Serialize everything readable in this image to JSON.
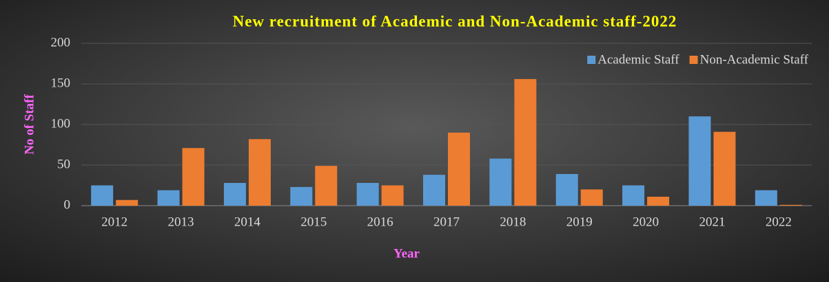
{
  "chart_data": {
    "type": "bar",
    "title": "New recruitment of Academic and Non-Academic staff-2022",
    "x_label": "Year",
    "y_label": "No of Staff",
    "categories": [
      "2012",
      "2013",
      "2014",
      "2015",
      "2016",
      "2017",
      "2018",
      "2019",
      "2020",
      "2021",
      "2022"
    ],
    "series": [
      {
        "name": "Academic Staff",
        "color": "#5b9bd5",
        "values": [
          25,
          19,
          28,
          23,
          28,
          38,
          58,
          39,
          25,
          110,
          19
        ]
      },
      {
        "name": "Non-Academic Staff",
        "color": "#ed7d31",
        "values": [
          7,
          71,
          82,
          49,
          25,
          90,
          156,
          20,
          11,
          91,
          1
        ]
      }
    ],
    "ylim": [
      0,
      200
    ],
    "yticks": [
      0,
      50,
      100,
      150,
      200
    ],
    "grid": true,
    "legend": "top-right"
  }
}
